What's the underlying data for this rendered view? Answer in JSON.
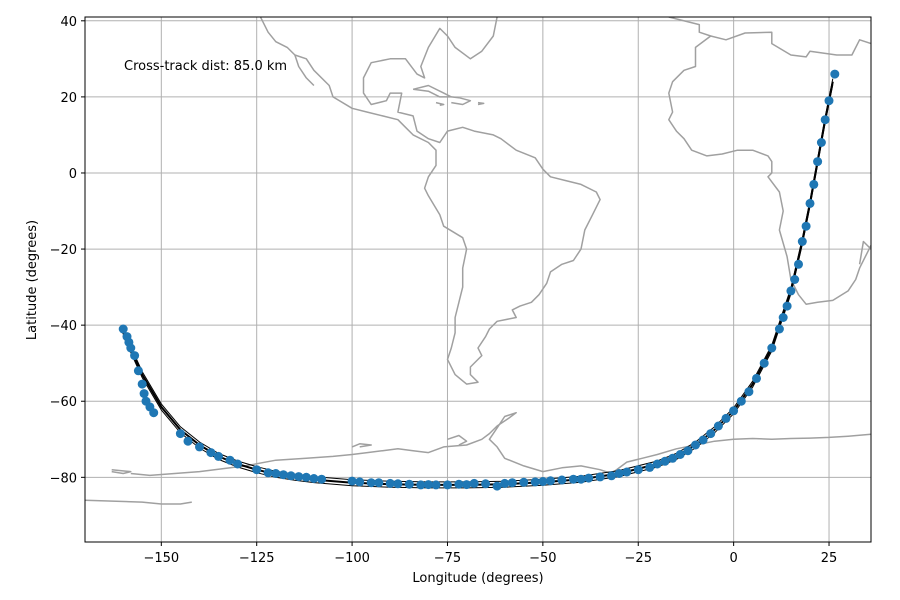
{
  "chart_data": {
    "type": "scatter",
    "title": "",
    "xlabel": "Longitude (degrees)",
    "ylabel": "Latitude (degrees)",
    "xlim": [
      -170,
      36
    ],
    "ylim": [
      -97,
      41
    ],
    "xticks": [
      -150,
      -125,
      -100,
      -75,
      -50,
      -25,
      0,
      25
    ],
    "xtick_labels": [
      "−150",
      "−125",
      "−100",
      "−75",
      "−50",
      "−25",
      "0",
      "25"
    ],
    "yticks": [
      -80,
      -60,
      -40,
      -20,
      0,
      20,
      40
    ],
    "ytick_labels": [
      "−80",
      "−60",
      "−40",
      "−20",
      "0",
      "20",
      "40"
    ],
    "grid": true,
    "annotation": "Cross-track dist: 85.0 km",
    "colors": {
      "points": "#1f77b4",
      "track": "#000000",
      "coast": "#a0a0a0",
      "grid": "#b0b0b0"
    },
    "great_circle_track": {
      "x": [
        -160,
        -155,
        -150,
        -145,
        -140,
        -135,
        -130,
        -125,
        -120,
        -115,
        -110,
        -100,
        -90,
        -80,
        -70,
        -60,
        -50,
        -40,
        -30,
        -20,
        -15,
        -10,
        -5,
        0,
        5,
        10,
        15,
        18,
        20,
        22,
        24,
        26
      ],
      "y": [
        -42,
        -53,
        -61.5,
        -67.5,
        -71.5,
        -74.5,
        -76.5,
        -78,
        -79.2,
        -80,
        -80.6,
        -81.4,
        -81.8,
        -82,
        -82,
        -81.8,
        -81.3,
        -80.5,
        -79,
        -76.5,
        -74.5,
        -71.5,
        -67.5,
        -62.5,
        -55.5,
        -46,
        -31,
        -18,
        -8,
        3,
        14,
        24
      ]
    },
    "scatter_points": {
      "x": [
        -160,
        -159,
        -158.5,
        -158,
        -157,
        -156,
        -155,
        -154.5,
        -154,
        -153,
        -152,
        -145,
        -143,
        -140,
        -137,
        -135,
        -132,
        -130,
        -125,
        -122,
        -120,
        -118,
        -116,
        -114,
        -112,
        -110,
        -108,
        -100,
        -98,
        -95,
        -93,
        -90,
        -88,
        -85,
        -82,
        -80,
        -78,
        -75,
        -72,
        -70,
        -68,
        -65,
        -62,
        -60,
        -58,
        -55,
        -52,
        -50,
        -48,
        -45,
        -42,
        -40,
        -38,
        -35,
        -32,
        -30,
        -28,
        -25,
        -22,
        -20,
        -18,
        -16,
        -14,
        -12,
        -10,
        -8,
        -6,
        -4,
        -2,
        0,
        2,
        4,
        6,
        8,
        10,
        12,
        13,
        14,
        15,
        16,
        17,
        18,
        19,
        20,
        21,
        22,
        23,
        24,
        25,
        26.5
      ],
      "y": [
        -41,
        -43,
        -44.5,
        -46,
        -48,
        -52,
        -55.5,
        -58,
        -60,
        -61.5,
        -63,
        -68.5,
        -70.5,
        -72,
        -73.5,
        -74.5,
        -75.5,
        -76.5,
        -78,
        -78.8,
        -79,
        -79.3,
        -79.6,
        -79.8,
        -80,
        -80.3,
        -80.5,
        -81,
        -81.2,
        -81.4,
        -81.4,
        -81.6,
        -81.7,
        -81.8,
        -82,
        -81.9,
        -82,
        -82,
        -81.8,
        -81.9,
        -81.6,
        -81.7,
        -82.3,
        -81.6,
        -81.4,
        -81.3,
        -81.2,
        -81.1,
        -80.9,
        -80.7,
        -80.5,
        -80.5,
        -80.2,
        -79.9,
        -79.6,
        -79,
        -78.6,
        -78,
        -77.4,
        -76.5,
        -75.8,
        -75,
        -74,
        -73,
        -71.5,
        -70.2,
        -68.5,
        -66.5,
        -64.5,
        -62.5,
        -60,
        -57.5,
        -54,
        -50,
        -46,
        -41,
        -38,
        -35,
        -31,
        -28,
        -24,
        -18,
        -14,
        -8,
        -3,
        3,
        8,
        14,
        19,
        26
      ]
    },
    "coastline_paths": [
      [
        [
          -62,
          41
        ],
        [
          -63,
          36
        ],
        [
          -66,
          32
        ],
        [
          -69,
          30
        ],
        [
          -73,
          33
        ],
        [
          -75,
          36
        ],
        [
          -77,
          38
        ],
        [
          -80,
          33
        ],
        [
          -82,
          28
        ],
        [
          -81,
          25
        ],
        [
          -83,
          26
        ],
        [
          -86,
          30
        ],
        [
          -90,
          30
        ],
        [
          -95,
          29
        ],
        [
          -97,
          25
        ],
        [
          -97,
          21
        ],
        [
          -95,
          18
        ],
        [
          -91,
          19
        ],
        [
          -90,
          21
        ],
        [
          -87,
          21
        ],
        [
          -88,
          16
        ],
        [
          -84,
          15
        ],
        [
          -83,
          11
        ],
        [
          -80,
          9
        ],
        [
          -77,
          8
        ],
        [
          -75,
          11
        ],
        [
          -71,
          12
        ],
        [
          -68,
          11
        ],
        [
          -63,
          10
        ],
        [
          -61,
          9
        ],
        [
          -57,
          6
        ],
        [
          -52,
          4
        ],
        [
          -50,
          1
        ],
        [
          -48,
          -1
        ],
        [
          -44,
          -2
        ],
        [
          -40,
          -3
        ],
        [
          -36,
          -5
        ],
        [
          -35,
          -7
        ],
        [
          -37,
          -11
        ],
        [
          -39,
          -15
        ],
        [
          -40,
          -20
        ],
        [
          -42,
          -23
        ],
        [
          -45,
          -24
        ],
        [
          -48,
          -26
        ],
        [
          -49,
          -29
        ],
        [
          -51,
          -32
        ],
        [
          -53,
          -34
        ],
        [
          -56,
          -35
        ],
        [
          -58,
          -36
        ],
        [
          -57,
          -38
        ],
        [
          -62,
          -39
        ],
        [
          -64,
          -41
        ],
        [
          -65,
          -43
        ],
        [
          -67,
          -46
        ],
        [
          -66,
          -48
        ],
        [
          -69,
          -51
        ],
        [
          -69,
          -53
        ],
        [
          -67,
          -55
        ],
        [
          -70,
          -55.5
        ],
        [
          -73,
          -53
        ],
        [
          -75,
          -49
        ],
        [
          -74,
          -46
        ],
        [
          -73,
          -42
        ],
        [
          -73,
          -38
        ],
        [
          -72,
          -34
        ],
        [
          -71,
          -30
        ],
        [
          -71,
          -25
        ],
        [
          -70,
          -20
        ],
        [
          -71,
          -17
        ],
        [
          -76,
          -14
        ],
        [
          -77,
          -11
        ],
        [
          -80,
          -6
        ],
        [
          -81,
          -4
        ],
        [
          -80,
          -1
        ],
        [
          -78,
          2
        ],
        [
          -78,
          6
        ],
        [
          -80,
          8
        ],
        [
          -84,
          10
        ],
        [
          -86,
          12
        ],
        [
          -88,
          14
        ],
        [
          -92,
          15
        ],
        [
          -96,
          16
        ],
        [
          -100,
          17
        ],
        [
          -105,
          20
        ],
        [
          -106,
          23
        ],
        [
          -110,
          27
        ],
        [
          -112,
          30
        ],
        [
          -115,
          31
        ],
        [
          -117,
          33
        ],
        [
          -120,
          34.5
        ],
        [
          -122,
          37
        ],
        [
          -123.5,
          40
        ],
        [
          -124,
          41
        ]
      ],
      [
        [
          -110,
          23
        ],
        [
          -112,
          25
        ],
        [
          -114,
          28
        ],
        [
          -115,
          31
        ]
      ],
      [
        [
          -84,
          22
        ],
        [
          -80,
          23
        ],
        [
          -76,
          21
        ],
        [
          -74,
          20
        ],
        [
          -77,
          20
        ],
        [
          -80,
          21.5
        ],
        [
          -84,
          22
        ]
      ],
      [
        [
          -74,
          20
        ],
        [
          -72,
          19.8
        ],
        [
          -69,
          19
        ],
        [
          -71,
          18
        ],
        [
          -74,
          18.5
        ]
      ],
      [
        [
          -78,
          18.5
        ],
        [
          -76,
          18
        ],
        [
          -77,
          17.8
        ]
      ],
      [
        [
          -67,
          18.5
        ],
        [
          -65.5,
          18.3
        ],
        [
          -67,
          18
        ]
      ],
      [
        [
          -17,
          41
        ],
        [
          -9,
          39
        ],
        [
          -9,
          37
        ],
        [
          -6,
          36
        ],
        [
          -10,
          33
        ],
        [
          -10,
          28
        ],
        [
          -13,
          27
        ],
        [
          -16,
          24
        ],
        [
          -17,
          21
        ],
        [
          -16,
          16
        ],
        [
          -17,
          14
        ],
        [
          -15,
          11
        ],
        [
          -13,
          9
        ],
        [
          -11,
          6
        ],
        [
          -7,
          4.5
        ],
        [
          -3,
          5
        ],
        [
          1,
          6
        ],
        [
          5,
          6
        ],
        [
          9,
          4.5
        ],
        [
          10,
          3
        ],
        [
          10,
          0
        ],
        [
          9,
          -1
        ],
        [
          12,
          -5
        ],
        [
          13,
          -10
        ],
        [
          12,
          -15
        ],
        [
          14,
          -22
        ],
        [
          15,
          -28
        ],
        [
          17,
          -32
        ],
        [
          19,
          -34.5
        ],
        [
          22,
          -34
        ],
        [
          26,
          -33.5
        ],
        [
          30,
          -31
        ],
        [
          32,
          -28
        ],
        [
          33,
          -25
        ],
        [
          35,
          -21
        ],
        [
          36,
          -19
        ]
      ],
      [
        [
          36,
          34
        ],
        [
          33,
          35
        ],
        [
          31,
          31
        ],
        [
          27,
          31
        ],
        [
          20,
          32
        ],
        [
          19,
          30.5
        ],
        [
          15,
          31
        ],
        [
          10,
          34
        ],
        [
          10,
          37
        ],
        [
          3,
          36.8
        ],
        [
          -2,
          35
        ],
        [
          -6,
          36
        ]
      ],
      [
        [
          36,
          -20
        ],
        [
          34,
          -18
        ],
        [
          33,
          -24
        ]
      ],
      [
        [
          -170,
          -86
        ],
        [
          -155,
          -86.5
        ],
        [
          -150,
          -87
        ],
        [
          -145,
          -87
        ],
        [
          -142,
          -86.5
        ]
      ],
      [
        [
          -163,
          -78
        ],
        [
          -158,
          -78.5
        ],
        [
          -160,
          -79
        ],
        [
          -163,
          -78.5
        ]
      ],
      [
        [
          -158,
          -79
        ],
        [
          -153,
          -79.5
        ],
        [
          -140,
          -78.5
        ],
        [
          -128,
          -77
        ],
        [
          -120,
          -75.5
        ],
        [
          -112,
          -75
        ],
        [
          -105,
          -74.5
        ],
        [
          -100,
          -74
        ],
        [
          -96,
          -73.5
        ],
        [
          -92,
          -73
        ],
        [
          -88,
          -72.5
        ],
        [
          -84,
          -73
        ],
        [
          -80,
          -73.5
        ],
        [
          -76,
          -72
        ],
        [
          -70,
          -71.5
        ],
        [
          -66,
          -70
        ],
        [
          -64,
          -68.5
        ],
        [
          -62,
          -66.5
        ],
        [
          -59,
          -64.5
        ],
        [
          -57,
          -63
        ],
        [
          -60,
          -64
        ],
        [
          -62,
          -67
        ],
        [
          -64,
          -70
        ],
        [
          -62,
          -72
        ],
        [
          -60,
          -75
        ],
        [
          -55,
          -77
        ],
        [
          -50,
          -78.5
        ],
        [
          -45,
          -77.5
        ],
        [
          -40,
          -77
        ],
        [
          -35,
          -78
        ],
        [
          -32,
          -79
        ],
        [
          -28,
          -76
        ],
        [
          -24,
          -75
        ],
        [
          -20,
          -74
        ],
        [
          -15,
          -72.5
        ],
        [
          -10,
          -71.5
        ],
        [
          -5,
          -70.5
        ],
        [
          0,
          -70
        ],
        [
          5,
          -69.8
        ],
        [
          10,
          -70
        ],
        [
          15,
          -69.8
        ],
        [
          20,
          -69.7
        ],
        [
          25,
          -69.5
        ],
        [
          30,
          -69.2
        ],
        [
          36,
          -68.7
        ]
      ],
      [
        [
          -98,
          -72
        ],
        [
          -95,
          -71.5
        ],
        [
          -98,
          -71.2
        ],
        [
          -100,
          -72
        ]
      ],
      [
        [
          -75,
          -70
        ],
        [
          -72,
          -69
        ],
        [
          -70,
          -70.5
        ],
        [
          -72,
          -71.5
        ]
      ]
    ]
  }
}
